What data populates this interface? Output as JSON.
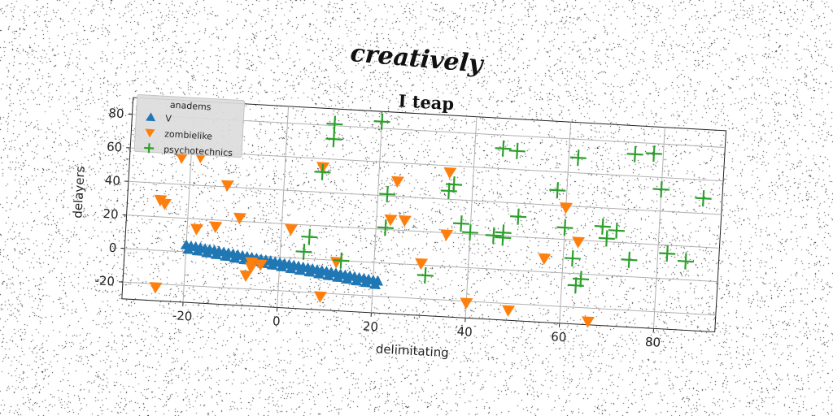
{
  "header": {
    "text": "creatively"
  },
  "chart_data": {
    "type": "scatter",
    "title": "I teap",
    "xlabel": "delimitating",
    "ylabel": "delayers",
    "xlim": [
      -33,
      93
    ],
    "ylim": [
      -30,
      90
    ],
    "xticks": [
      "-20",
      "0",
      "20",
      "40",
      "60",
      "80"
    ],
    "xtick_values": [
      -20,
      0,
      20,
      40,
      60,
      80
    ],
    "yticks": [
      "-20",
      "0",
      "20",
      "40",
      "60",
      "80"
    ],
    "ytick_values": [
      -20,
      0,
      20,
      40,
      60,
      80
    ],
    "grid": true,
    "legend": {
      "title": "anadems",
      "placement": "top-left"
    },
    "series": [
      {
        "name": "V",
        "marker": "triangle-up",
        "color": "#1f77b4",
        "x": [
          -20.0,
          -19.0,
          -18.0,
          -17.0,
          -16.0,
          -15.0,
          -14.0,
          -13.0,
          -12.0,
          -11.0,
          -10.0,
          -9.0,
          -8.0,
          -7.0,
          -6.0,
          -5.0,
          -4.0,
          -3.0,
          -2.0,
          -1.0,
          0.0,
          1.0,
          2.0,
          3.0,
          4.0,
          5.0,
          6.0,
          7.0,
          8.0,
          9.0,
          10.0,
          11.0,
          12.0,
          13.0,
          14.0,
          15.0,
          16.0,
          17.0,
          18.0,
          19.0,
          20.0,
          21.0,
          -19.5,
          -17.5,
          -15.5,
          -13.5,
          -11.5,
          -9.5,
          -7.5,
          -5.5,
          -3.5,
          -1.5,
          0.5,
          2.5,
          4.5,
          6.5,
          8.5,
          10.5,
          12.5,
          14.5,
          16.5,
          18.5,
          20.5
        ],
        "y": [
          4.0,
          3.6,
          3.3,
          2.9,
          2.5,
          2.2,
          1.8,
          1.4,
          1.1,
          0.7,
          0.3,
          0.0,
          -0.4,
          -0.8,
          -1.1,
          -1.5,
          -1.9,
          -2.2,
          -2.6,
          -3.0,
          -3.3,
          -3.7,
          -4.1,
          -4.4,
          -4.8,
          -5.2,
          -5.5,
          -5.9,
          -6.3,
          -6.6,
          -7.0,
          -7.4,
          -7.7,
          -8.1,
          -8.5,
          -8.8,
          -9.2,
          -9.6,
          -9.9,
          -10.3,
          -10.7,
          -11.0,
          1.5,
          0.8,
          0.0,
          -0.7,
          -1.4,
          -2.2,
          -2.9,
          -3.6,
          -4.4,
          -5.1,
          -5.8,
          -6.6,
          -7.3,
          -8.0,
          -8.8,
          -9.5,
          -10.2,
          -11.0,
          -11.7,
          -12.4,
          -13.2
        ]
      },
      {
        "name": "zombielike",
        "marker": "triangle-down",
        "color": "#ff7f0e",
        "x": [
          -22,
          -18,
          -12,
          -26,
          -25,
          -18,
          -14,
          -9,
          -26,
          -6,
          -6,
          -4,
          -7,
          2,
          8,
          12,
          24,
          23,
          26,
          9,
          30,
          35,
          35,
          40,
          49,
          56,
          60,
          63,
          66
        ],
        "y": [
          56,
          57,
          41,
          30,
          28,
          14,
          16,
          22,
          -22,
          -4,
          -7,
          -5,
          -12,
          17,
          55,
          -1,
          49,
          26,
          26,
          -22,
          1,
          19,
          56,
          -21,
          -24,
          8,
          39,
          19,
          -28
        ],
        "marker_size": 12
      },
      {
        "name": "psychotechnics",
        "marker": "plus",
        "color": "#2ca02c",
        "x": [
          10,
          10,
          20,
          8,
          22,
          22,
          35,
          36,
          38,
          40,
          46,
          47,
          49,
          50,
          45,
          47,
          58,
          60,
          62,
          62,
          63,
          64,
          68,
          69,
          71,
          74,
          74,
          78,
          80,
          82,
          86,
          89,
          6,
          5,
          13,
          31
        ],
        "y": [
          81,
          72,
          84,
          52,
          41,
          21,
          45,
          49,
          26,
          21,
          72,
          22,
          71,
          32,
          20,
          19,
          49,
          27,
          69,
          9,
          -7,
          -3,
          29,
          22,
          27,
          73,
          10,
          74,
          53,
          15,
          11,
          49,
          13,
          4,
          0,
          -6
        ]
      }
    ]
  }
}
